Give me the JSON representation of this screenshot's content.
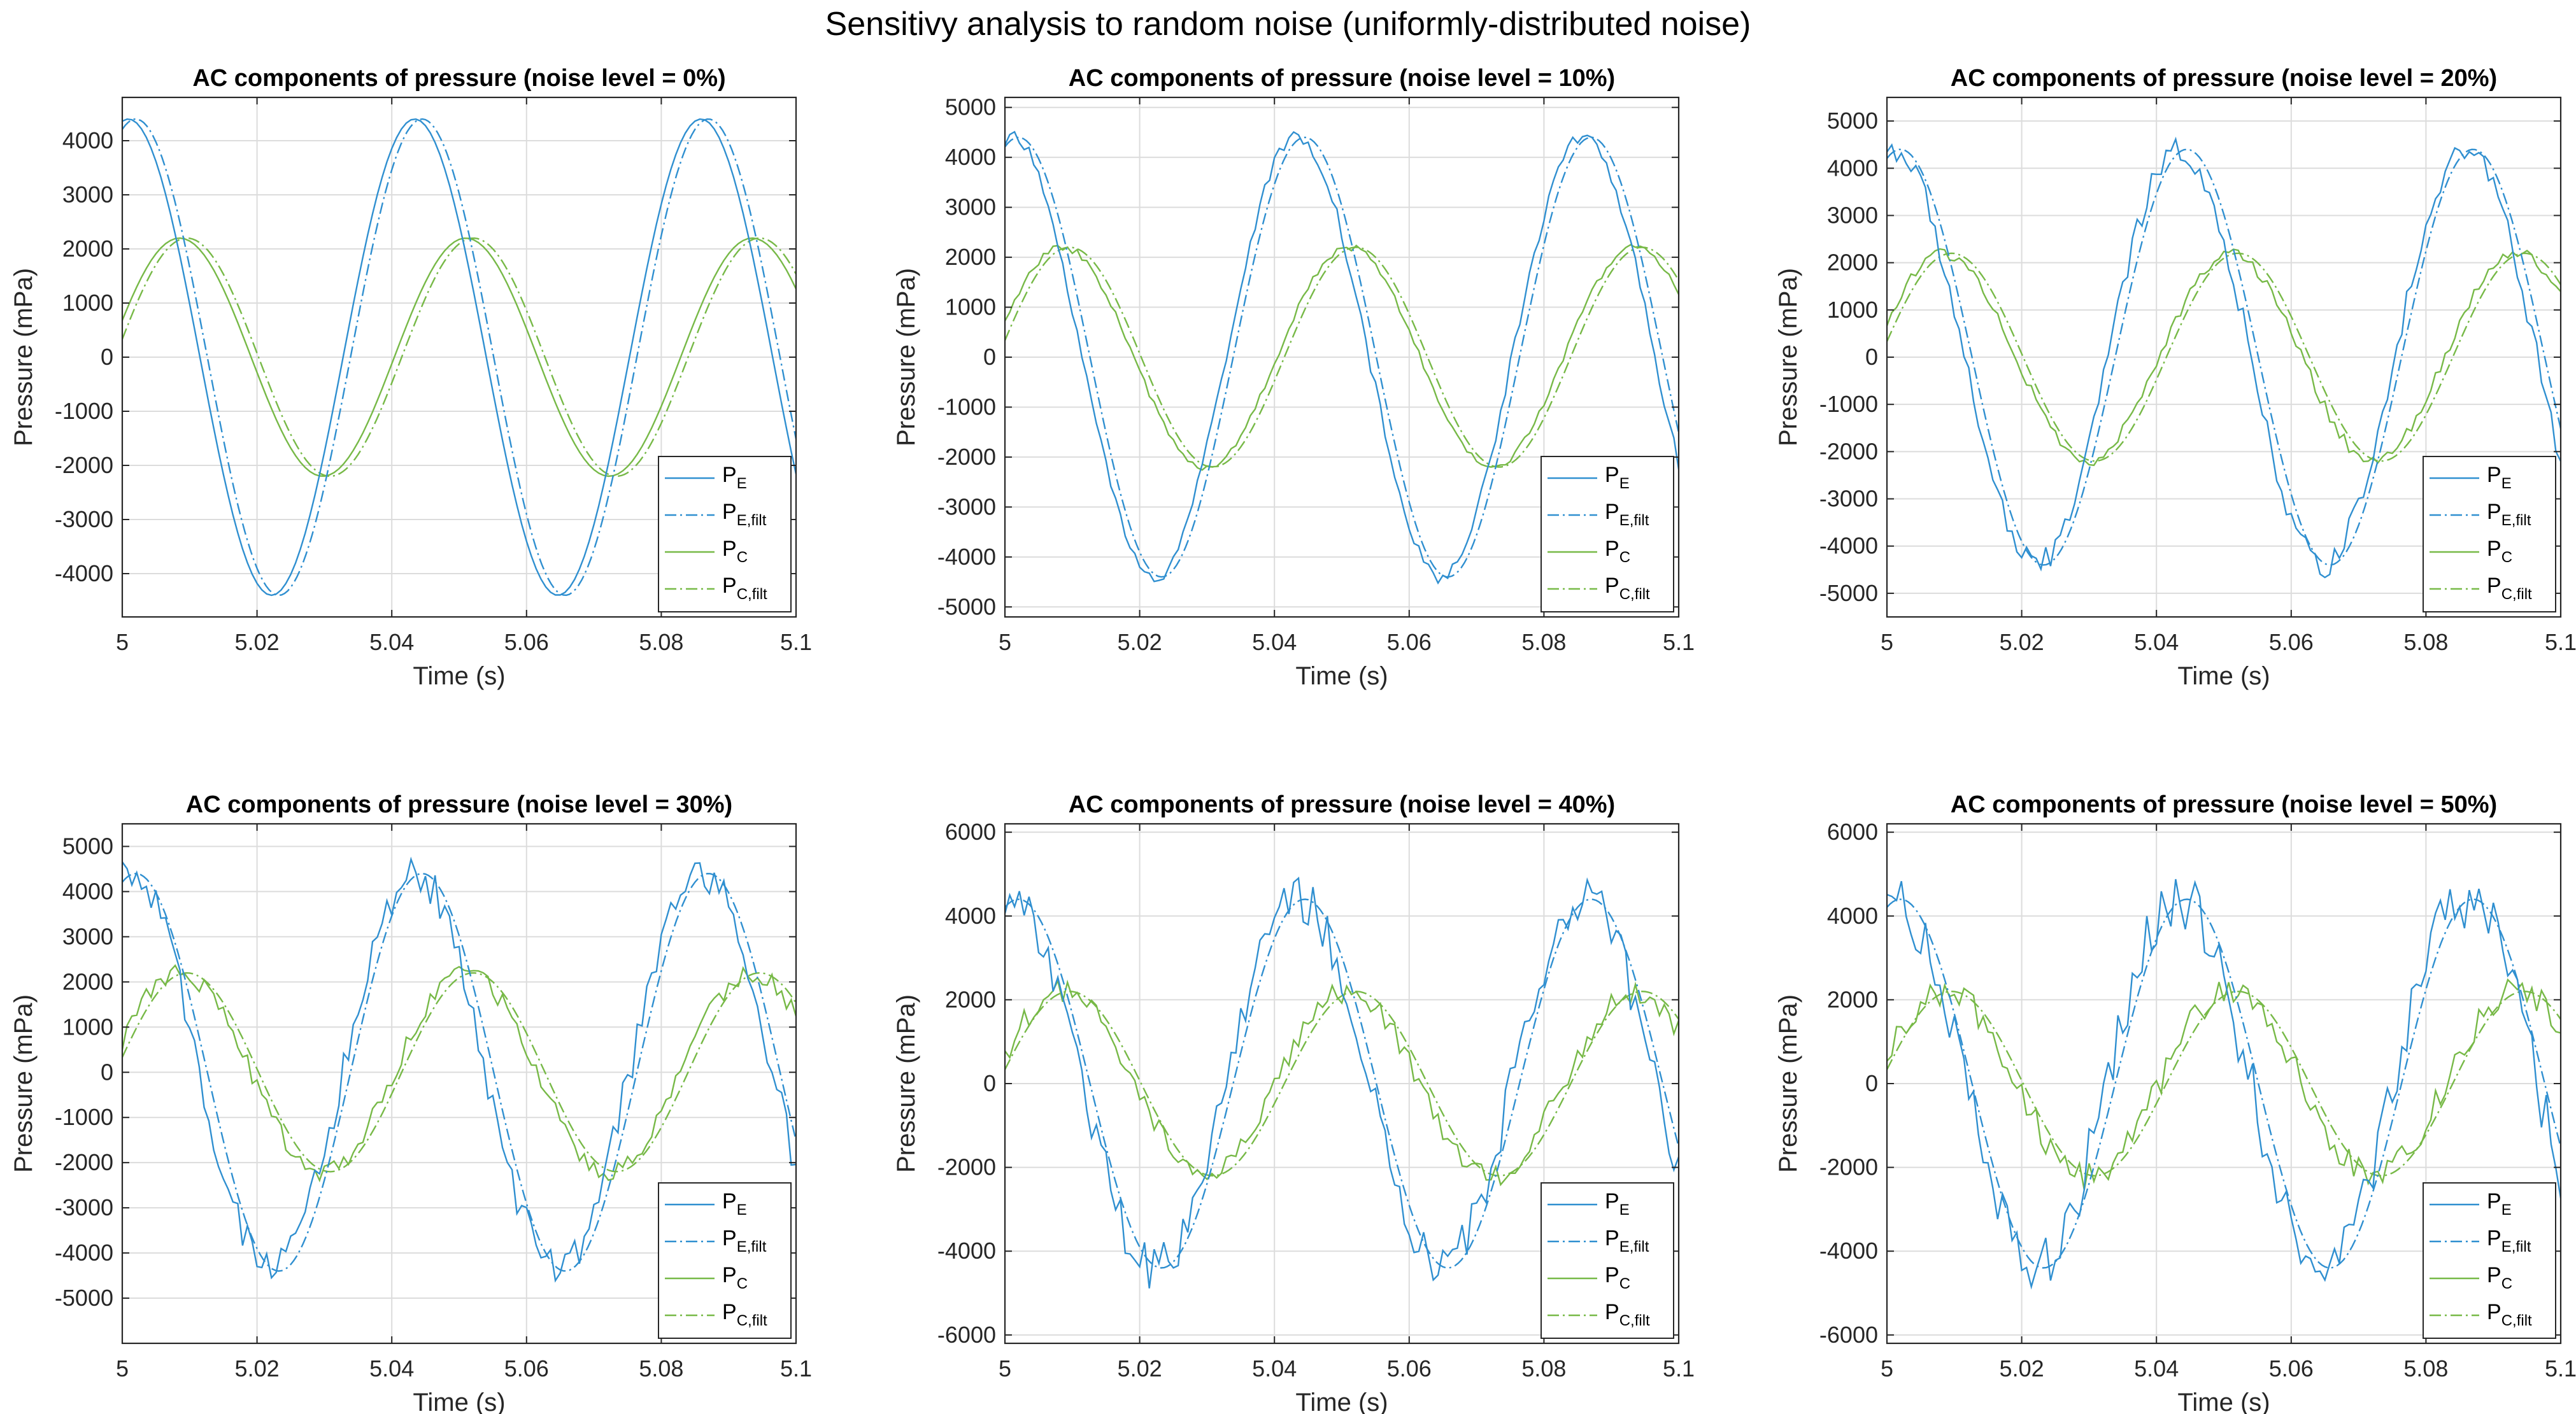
{
  "figure_title": "Sensitivy analysis to random noise (uniformly-distributed noise)",
  "colors": {
    "pe": "#2f8fd0",
    "pc": "#77b947",
    "grid": "#dcdcdc",
    "axis": "#262626"
  },
  "legend_entries": [
    {
      "base": "P",
      "sub": "E",
      "series": "pe",
      "dash": "solid"
    },
    {
      "base": "P",
      "sub": "E,filt",
      "series": "pe",
      "dash": "dashdot"
    },
    {
      "base": "P",
      "sub": "C",
      "series": "pc",
      "dash": "solid"
    },
    {
      "base": "P",
      "sub": "C,filt",
      "series": "pc",
      "dash": "dashdot"
    }
  ],
  "chart_data": [
    {
      "type": "line",
      "title": "AC components of pressure (noise level = 0%)",
      "noise_level": 0,
      "xlabel": "Time (s)",
      "ylabel": "Pressure (mPa)",
      "xlim": [
        5,
        5.1
      ],
      "ylim": [
        -4800,
        4800
      ],
      "xticks": [
        5,
        5.02,
        5.04,
        5.06,
        5.08,
        5.1
      ],
      "xtick_labels": [
        "5",
        "5.02",
        "5.04",
        "5.06",
        "5.08",
        "5.1"
      ],
      "yticks": [
        -4000,
        -3000,
        -2000,
        -1000,
        0,
        1000,
        2000,
        3000,
        4000
      ],
      "ytick_labels": [
        "-4000",
        "-3000",
        "-2000",
        "-1000",
        "0",
        "1000",
        "2000",
        "3000",
        "4000"
      ],
      "grid": true,
      "legend": "bottom-right",
      "model": {
        "pe_amp": 4400,
        "pe_peak": 5.0009,
        "pc_amp": 2200,
        "pc_peak": 5.0085,
        "period": 0.0425,
        "filt_lag": 0.0011
      }
    },
    {
      "type": "line",
      "title": "AC components of pressure (noise level = 10%)",
      "noise_level": 10,
      "xlabel": "Time (s)",
      "ylabel": "Pressure (mPa)",
      "xlim": [
        5,
        5.1
      ],
      "ylim": [
        -5200,
        5200
      ],
      "xticks": [
        5,
        5.02,
        5.04,
        5.06,
        5.08,
        5.1
      ],
      "xtick_labels": [
        "5",
        "5.02",
        "5.04",
        "5.06",
        "5.08",
        "5.1"
      ],
      "yticks": [
        -5000,
        -4000,
        -3000,
        -2000,
        -1000,
        0,
        1000,
        2000,
        3000,
        4000,
        5000
      ],
      "ytick_labels": [
        "-5000",
        "-4000",
        "-3000",
        "-2000",
        "-1000",
        "0",
        "1000",
        "2000",
        "3000",
        "4000",
        "5000"
      ],
      "grid": true,
      "legend": "bottom-right",
      "model": {
        "pe_amp": 4400,
        "pe_peak": 5.0009,
        "pc_amp": 2200,
        "pc_peak": 5.0085,
        "period": 0.0425,
        "filt_lag": 0.0011
      }
    },
    {
      "type": "line",
      "title": "AC components of pressure (noise level = 20%)",
      "noise_level": 20,
      "xlabel": "Time (s)",
      "ylabel": "Pressure (mPa)",
      "xlim": [
        5,
        5.1
      ],
      "ylim": [
        -5500,
        5500
      ],
      "xticks": [
        5,
        5.02,
        5.04,
        5.06,
        5.08,
        5.1
      ],
      "xtick_labels": [
        "5",
        "5.02",
        "5.04",
        "5.06",
        "5.08",
        "5.1"
      ],
      "yticks": [
        -5000,
        -4000,
        -3000,
        -2000,
        -1000,
        0,
        1000,
        2000,
        3000,
        4000,
        5000
      ],
      "ytick_labels": [
        "-5000",
        "-4000",
        "-3000",
        "-2000",
        "-1000",
        "0",
        "1000",
        "2000",
        "3000",
        "4000",
        "5000"
      ],
      "grid": true,
      "legend": "bottom-right",
      "model": {
        "pe_amp": 4400,
        "pe_peak": 5.0009,
        "pc_amp": 2200,
        "pc_peak": 5.0085,
        "period": 0.0425,
        "filt_lag": 0.0011
      }
    },
    {
      "type": "line",
      "title": "AC components of pressure (noise level = 30%)",
      "noise_level": 30,
      "xlabel": "Time (s)",
      "ylabel": "Pressure (mPa)",
      "xlim": [
        5,
        5.1
      ],
      "ylim": [
        -6000,
        5500
      ],
      "xticks": [
        5,
        5.02,
        5.04,
        5.06,
        5.08,
        5.1
      ],
      "xtick_labels": [
        "5",
        "5.02",
        "5.04",
        "5.06",
        "5.08",
        "5.1"
      ],
      "yticks": [
        -5000,
        -4000,
        -3000,
        -2000,
        -1000,
        0,
        1000,
        2000,
        3000,
        4000,
        5000
      ],
      "ytick_labels": [
        "-5000",
        "-4000",
        "-3000",
        "-2000",
        "-1000",
        "0",
        "1000",
        "2000",
        "3000",
        "4000",
        "5000"
      ],
      "grid": true,
      "legend": "bottom-right",
      "model": {
        "pe_amp": 4400,
        "pe_peak": 5.0009,
        "pc_amp": 2200,
        "pc_peak": 5.0085,
        "period": 0.0425,
        "filt_lag": 0.0011
      }
    },
    {
      "type": "line",
      "title": "AC components of pressure (noise level = 40%)",
      "noise_level": 40,
      "xlabel": "Time (s)",
      "ylabel": "Pressure (mPa)",
      "xlim": [
        5,
        5.1
      ],
      "ylim": [
        -6200,
        6200
      ],
      "xticks": [
        5,
        5.02,
        5.04,
        5.06,
        5.08,
        5.1
      ],
      "xtick_labels": [
        "5",
        "5.02",
        "5.04",
        "5.06",
        "5.08",
        "5.1"
      ],
      "yticks": [
        -6000,
        -4000,
        -2000,
        0,
        2000,
        4000,
        6000
      ],
      "ytick_labels": [
        "-6000",
        "-4000",
        "-2000",
        "0",
        "2000",
        "4000",
        "6000"
      ],
      "grid": true,
      "legend": "bottom-right",
      "model": {
        "pe_amp": 4400,
        "pe_peak": 5.0009,
        "pc_amp": 2200,
        "pc_peak": 5.0085,
        "period": 0.0425,
        "filt_lag": 0.0011
      }
    },
    {
      "type": "line",
      "title": "AC components of pressure (noise level = 50%)",
      "noise_level": 50,
      "xlabel": "Time (s)",
      "ylabel": "Pressure (mPa)",
      "xlim": [
        5,
        5.1
      ],
      "ylim": [
        -6200,
        6200
      ],
      "xticks": [
        5,
        5.02,
        5.04,
        5.06,
        5.08,
        5.1
      ],
      "xtick_labels": [
        "5",
        "5.02",
        "5.04",
        "5.06",
        "5.08",
        "5.1"
      ],
      "yticks": [
        -6000,
        -4000,
        -2000,
        0,
        2000,
        4000,
        6000
      ],
      "ytick_labels": [
        "-6000",
        "-4000",
        "-2000",
        "0",
        "2000",
        "4000",
        "6000"
      ],
      "grid": true,
      "legend": "bottom-right",
      "model": {
        "pe_amp": 4400,
        "pe_peak": 5.0009,
        "pc_amp": 2200,
        "pc_peak": 5.0085,
        "period": 0.0425,
        "filt_lag": 0.0011
      }
    }
  ]
}
